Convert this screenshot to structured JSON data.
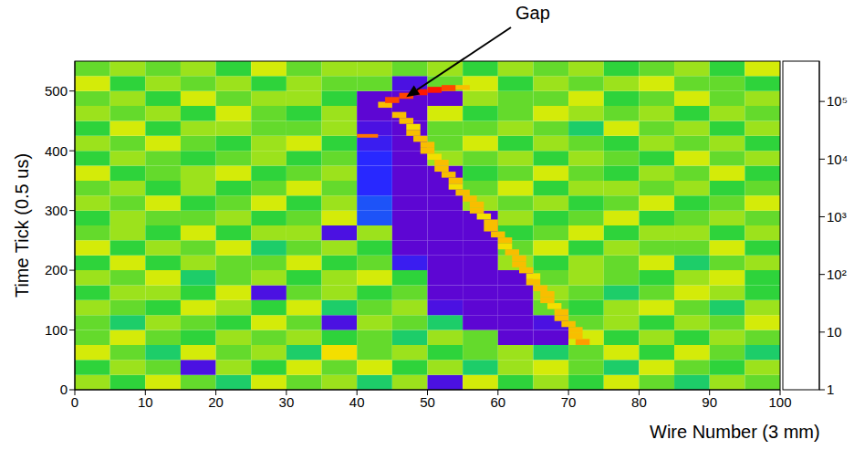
{
  "chart_data": {
    "type": "heatmap",
    "x_label": "Wire Number (3 mm)",
    "y_label": "Time Tick (0.5 us)",
    "xlim": [
      0,
      100
    ],
    "xticks": [
      0,
      10,
      20,
      30,
      40,
      50,
      60,
      70,
      80,
      90,
      100
    ],
    "ylim": [
      0,
      550
    ],
    "yticks": [
      0,
      100,
      200,
      300,
      400,
      500
    ],
    "annotations": [
      {
        "text": "Gap",
        "x": 47,
        "y": 490
      }
    ],
    "colorbar": {
      "log": true,
      "range": [
        1,
        500000
      ],
      "ticks": [
        1,
        10,
        {
          "value": 100,
          "label": "10²"
        },
        {
          "value": 1000,
          "label": "10³"
        },
        {
          "value": 10000,
          "label": "10⁴"
        },
        {
          "value": 100000,
          "label": "10⁵"
        }
      ]
    },
    "cells": {
      "x_edges": [
        0,
        5,
        10,
        15,
        20,
        25,
        30,
        35,
        40,
        45,
        50,
        55,
        60,
        65,
        70,
        75,
        80,
        85,
        90,
        95,
        100
      ],
      "y_edges": [
        0,
        25,
        50,
        75,
        100,
        125,
        150,
        175,
        200,
        225,
        250,
        275,
        300,
        325,
        350,
        375,
        400,
        425,
        450,
        475,
        500,
        525,
        550
      ],
      "values": [
        [
          3000,
          900,
          6000,
          2000,
          400,
          9000,
          1500,
          3500,
          700,
          5000,
          2,
          6000,
          1200,
          3000,
          800,
          9000,
          2000,
          500,
          4000,
          1500
        ],
        [
          900,
          5000,
          1500,
          2,
          3500,
          800,
          6000,
          2000,
          9000,
          1200,
          4000,
          700,
          3000,
          9000,
          1500,
          400,
          6000,
          2000,
          800,
          5000
        ],
        [
          6000,
          1500,
          400,
          9000,
          2000,
          3000,
          700,
          15000,
          1500,
          3500,
          900,
          2000,
          5000,
          400,
          2500,
          6000,
          1000,
          9000,
          2000,
          700
        ],
        [
          1500,
          9000,
          2000,
          800,
          5000,
          1500,
          3000,
          1200,
          2500,
          700,
          3000,
          1500,
          1,
          1,
          6000,
          1200,
          3500,
          800,
          5000,
          2000
        ],
        [
          2500,
          700,
          4000,
          1500,
          900,
          6000,
          2000,
          2,
          3000,
          1500,
          600,
          1,
          1,
          3,
          2000,
          5000,
          900,
          4000,
          1500,
          8000
        ],
        [
          5000,
          2000,
          900,
          6000,
          3000,
          1200,
          9000,
          700,
          1500,
          4000,
          3,
          1,
          1,
          2500,
          800,
          3500,
          6000,
          1500,
          700,
          3000
        ],
        [
          800,
          4000,
          3000,
          1200,
          7000,
          2,
          2500,
          5000,
          900,
          2000,
          1,
          1,
          1,
          4000,
          1500,
          700,
          2000,
          9000,
          3000,
          1200
        ],
        [
          3500,
          1500,
          6000,
          500,
          2000,
          4500,
          900,
          3000,
          6000,
          800,
          1,
          1,
          1,
          1500,
          5000,
          2500,
          800,
          3000,
          6000,
          900
        ],
        [
          1200,
          7000,
          800,
          3500,
          1500,
          2000,
          6000,
          1000,
          2500,
          5,
          1,
          1,
          3000,
          900,
          3500,
          1500,
          7000,
          600,
          2000,
          4500
        ],
        [
          6000,
          900,
          3000,
          2000,
          9000,
          700,
          1500,
          4000,
          1200,
          1,
          1,
          1,
          2000,
          6000,
          1000,
          4000,
          2500,
          1500,
          9000,
          800
        ],
        [
          2000,
          3500,
          1200,
          6000,
          800,
          3000,
          5000,
          2,
          3000,
          1,
          1,
          1,
          800,
          2500,
          7000,
          900,
          3000,
          5000,
          1200,
          3500
        ],
        [
          900,
          5000,
          2500,
          1500,
          4000,
          1200,
          2000,
          6000,
          20,
          1,
          1,
          1,
          5000,
          1200,
          2000,
          6000,
          900,
          2500,
          4000,
          1500
        ],
        [
          4500,
          1500,
          7000,
          900,
          2500,
          6000,
          800,
          3000,
          20,
          1,
          1,
          3500,
          1500,
          4000,
          900,
          2000,
          6000,
          1200,
          2500,
          7000
        ],
        [
          1500,
          3000,
          900,
          5000,
          1200,
          2000,
          9000,
          1500,
          10,
          1,
          1,
          2000,
          7000,
          800,
          3500,
          5000,
          1500,
          3000,
          900,
          2000
        ],
        [
          7000,
          800,
          2500,
          3000,
          6000,
          900,
          2500,
          4000,
          10,
          1,
          1,
          900,
          2500,
          6000,
          1500,
          800,
          4000,
          2000,
          6000,
          1200
        ],
        [
          1200,
          4500,
          1500,
          800,
          2000,
          5000,
          1200,
          2500,
          10,
          1,
          4000,
          1500,
          3000,
          900,
          5000,
          2500,
          1200,
          7000,
          1500,
          3000
        ],
        [
          3000,
          1500,
          6000,
          2500,
          900,
          3000,
          7000,
          1000,
          5,
          1,
          2500,
          6000,
          1200,
          3000,
          2000,
          900,
          3500,
          1500,
          5000,
          800
        ],
        [
          800,
          6000,
          1200,
          4000,
          3500,
          1500,
          2000,
          5000,
          3,
          1,
          1500,
          2000,
          5000,
          1500,
          700,
          6000,
          2000,
          3000,
          1200,
          4500
        ],
        [
          5000,
          2000,
          3500,
          900,
          6000,
          2500,
          900,
          3000,
          1,
          1,
          6000,
          900,
          2500,
          7000,
          3000,
          1500,
          5000,
          800,
          3500,
          2000
        ],
        [
          1500,
          3500,
          800,
          6000,
          1500,
          4000,
          3000,
          1200,
          1,
          1,
          1,
          3500,
          1500,
          2500,
          6000,
          900,
          2000,
          6000,
          1500,
          3000
        ],
        [
          6000,
          900,
          4000,
          2000,
          3000,
          1200,
          5000,
          2500,
          2000,
          3,
          1500,
          6000,
          900,
          4000,
          1500,
          3000,
          7000,
          1500,
          2500,
          900
        ],
        [
          2000,
          5000,
          1500,
          3500,
          900,
          6000,
          1500,
          4000,
          3000,
          2500,
          5000,
          1200,
          3000,
          2000,
          5000,
          1200,
          2500,
          4000,
          900,
          6000
        ]
      ]
    },
    "hits": [
      [
        71,
        73,
        75,
        85,
        40000
      ],
      [
        70,
        72,
        85,
        95,
        30000
      ],
      [
        70,
        72,
        95,
        105,
        25000
      ],
      [
        69,
        71,
        105,
        115,
        20000
      ],
      [
        68,
        70,
        115,
        125,
        25000
      ],
      [
        68,
        70,
        125,
        135,
        20000
      ],
      [
        67,
        69,
        135,
        145,
        18000
      ],
      [
        66,
        68,
        145,
        155,
        25000
      ],
      [
        66,
        68,
        155,
        165,
        20000
      ],
      [
        65,
        67,
        165,
        175,
        30000
      ],
      [
        64,
        66,
        175,
        185,
        20000
      ],
      [
        64,
        66,
        185,
        195,
        18000
      ],
      [
        63,
        65,
        195,
        205,
        25000
      ],
      [
        62,
        64,
        205,
        215,
        20000
      ],
      [
        62,
        64,
        215,
        225,
        30000
      ],
      [
        61,
        63,
        225,
        235,
        20000
      ],
      [
        60,
        62,
        235,
        245,
        18000
      ],
      [
        60,
        62,
        245,
        255,
        25000
      ],
      [
        59,
        61,
        255,
        265,
        20000
      ],
      [
        58,
        60,
        265,
        275,
        30000
      ],
      [
        58,
        60,
        275,
        285,
        20000
      ],
      [
        57,
        59,
        285,
        295,
        18000
      ],
      [
        56,
        58,
        295,
        305,
        25000
      ],
      [
        56,
        58,
        305,
        315,
        20000
      ],
      [
        55,
        57,
        315,
        325,
        30000
      ],
      [
        54,
        56,
        325,
        335,
        20000
      ],
      [
        53,
        55,
        335,
        345,
        18000
      ],
      [
        53,
        55,
        345,
        355,
        25000
      ],
      [
        52,
        54,
        355,
        365,
        20000
      ],
      [
        51,
        53,
        365,
        375,
        30000
      ],
      [
        51,
        53,
        375,
        385,
        20000
      ],
      [
        50,
        52,
        385,
        395,
        18000
      ],
      [
        49,
        51,
        395,
        405,
        25000
      ],
      [
        49,
        51,
        405,
        415,
        20000
      ],
      [
        48,
        50,
        415,
        425,
        30000
      ],
      [
        47,
        49,
        425,
        435,
        20000
      ],
      [
        47,
        49,
        435,
        445,
        18000
      ],
      [
        46,
        48,
        445,
        455,
        25000
      ],
      [
        45,
        47,
        455,
        465,
        20000
      ],
      [
        40,
        43,
        422,
        428,
        100000
      ],
      [
        43,
        45,
        472,
        482,
        20000
      ],
      [
        44,
        46,
        480,
        490,
        150000
      ],
      [
        46,
        48,
        487,
        497,
        250000
      ],
      [
        48,
        50,
        493,
        503,
        350000
      ],
      [
        50,
        52,
        497,
        507,
        300000
      ],
      [
        52,
        54,
        500,
        510,
        150000
      ],
      [
        54,
        56,
        502,
        510,
        30000
      ]
    ]
  }
}
